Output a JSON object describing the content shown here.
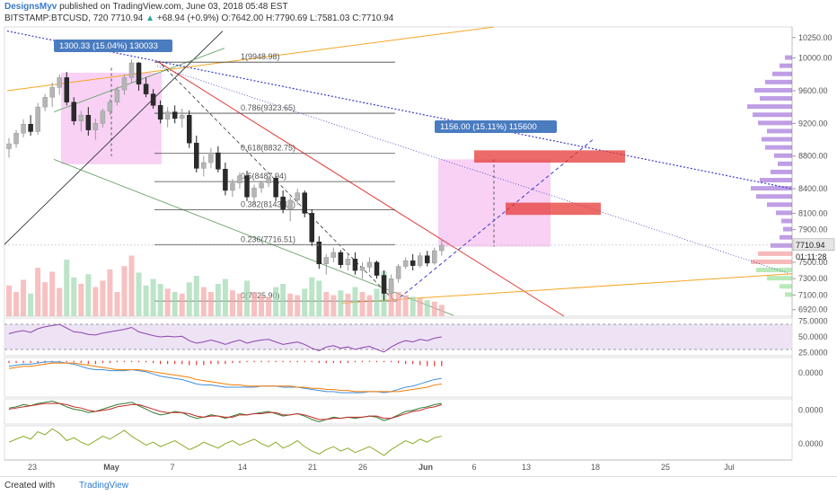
{
  "header": {
    "author": "DesignsMyv",
    "published_text": "published on TradingView.com, June 03, 2018 05:48 EST",
    "symbol": "BITSTAMP:BTCUSD, 720",
    "last": "7710.94",
    "change_arrow": "▲",
    "change": "+68.94 (+0.9%)",
    "ohlc": "O:7642.00 H:7790.69 L:7581.03 C:7710.94"
  },
  "footer": {
    "created_with": "Created with",
    "brand": "TradingView"
  },
  "colors": {
    "fib": "#444444",
    "trend_blue": "#3b3bc8",
    "red": "#e53935",
    "orange": "#f5a623",
    "pink": "#f6c6f2",
    "bull": "#b5b5b5",
    "bear": "#2b2b2b",
    "rsi": "#8e44ad",
    "macd": "#3f8fdc",
    "signal": "#f57c00"
  },
  "chart_data": {
    "type": "candlestick",
    "y_axis_ticks": [
      "10250.00",
      "10000.00",
      "9600.00",
      "9200.00",
      "8800.00",
      "8400.00",
      "8100.00",
      "7900.00",
      "7500.00",
      "7300.00",
      "7100.00",
      "6920.00"
    ],
    "x_axis_ticks": [
      "23",
      "May",
      "7",
      "14",
      "21",
      "26",
      "Jun",
      "6",
      "13",
      "18",
      "25",
      "Jul"
    ],
    "last_price_label": "7710.94",
    "countdown_label": "01:11:28",
    "fib_labels": [
      "1(9948.98)",
      "0.786(9323.65)",
      "0.618(8832.75)",
      "0.5(8487.94)",
      "0.382(8143.13)",
      "0.236(7716.51)",
      "0(7025.90)"
    ],
    "measure_boxes": [
      {
        "label": "1300.33 (15.04%) 130033"
      },
      {
        "label": "1156.00 (15.11%) 115600"
      }
    ],
    "ohlc": [
      [
        8890,
        9020,
        8780,
        8950
      ],
      [
        8950,
        9120,
        8900,
        9080
      ],
      [
        9080,
        9250,
        9030,
        9190
      ],
      [
        9190,
        9300,
        9050,
        9100
      ],
      [
        9100,
        9450,
        9060,
        9400
      ],
      [
        9400,
        9560,
        9350,
        9520
      ],
      [
        9520,
        9700,
        9400,
        9640
      ],
      [
        9640,
        9800,
        9550,
        9760
      ],
      [
        9760,
        9830,
        9420,
        9460
      ],
      [
        9460,
        9520,
        9180,
        9230
      ],
      [
        9230,
        9350,
        9100,
        9300
      ],
      [
        9300,
        9400,
        9050,
        9120
      ],
      [
        9120,
        9260,
        9000,
        9200
      ],
      [
        9200,
        9380,
        9150,
        9350
      ],
      [
        9350,
        9500,
        9300,
        9460
      ],
      [
        9460,
        9650,
        9420,
        9610
      ],
      [
        9610,
        9800,
        9550,
        9760
      ],
      [
        9760,
        9980,
        9700,
        9940
      ],
      [
        9940,
        9950,
        9600,
        9680
      ],
      [
        9680,
        9760,
        9520,
        9560
      ],
      [
        9560,
        9620,
        9380,
        9420
      ],
      [
        9420,
        9480,
        9200,
        9250
      ],
      [
        9250,
        9400,
        9150,
        9340
      ],
      [
        9340,
        9420,
        9200,
        9260
      ],
      [
        9260,
        9380,
        9150,
        9300
      ],
      [
        9300,
        9360,
        8900,
        8960
      ],
      [
        8960,
        9050,
        8600,
        8650
      ],
      [
        8650,
        8800,
        8550,
        8720
      ],
      [
        8720,
        8900,
        8650,
        8840
      ],
      [
        8840,
        8920,
        8600,
        8640
      ],
      [
        8640,
        8720,
        8320,
        8380
      ],
      [
        8380,
        8520,
        8300,
        8470
      ],
      [
        8470,
        8600,
        8400,
        8560
      ],
      [
        8560,
        8620,
        8250,
        8300
      ],
      [
        8300,
        8450,
        8200,
        8410
      ],
      [
        8410,
        8500,
        8350,
        8470
      ],
      [
        8470,
        8560,
        8420,
        8530
      ],
      [
        8530,
        8560,
        8250,
        8300
      ],
      [
        8300,
        8380,
        8100,
        8150
      ],
      [
        8150,
        8300,
        8000,
        8260
      ],
      [
        8260,
        8400,
        8200,
        8350
      ],
      [
        8350,
        8380,
        8050,
        8100
      ],
      [
        8100,
        8150,
        7700,
        7750
      ],
      [
        7750,
        7820,
        7420,
        7480
      ],
      [
        7480,
        7600,
        7350,
        7560
      ],
      [
        7560,
        7680,
        7500,
        7620
      ],
      [
        7620,
        7650,
        7430,
        7470
      ],
      [
        7470,
        7600,
        7400,
        7540
      ],
      [
        7540,
        7620,
        7350,
        7400
      ],
      [
        7400,
        7500,
        7300,
        7440
      ],
      [
        7440,
        7560,
        7380,
        7500
      ],
      [
        7500,
        7520,
        7300,
        7340
      ],
      [
        7340,
        7400,
        7030,
        7120
      ],
      [
        7120,
        7350,
        7060,
        7300
      ],
      [
        7300,
        7480,
        7250,
        7450
      ],
      [
        7450,
        7560,
        7420,
        7520
      ],
      [
        7520,
        7600,
        7400,
        7460
      ],
      [
        7460,
        7620,
        7430,
        7580
      ],
      [
        7580,
        7640,
        7450,
        7490
      ],
      [
        7490,
        7680,
        7470,
        7642
      ],
      [
        7642,
        7791,
        7581,
        7711
      ]
    ],
    "volume": [
      38,
      30,
      45,
      28,
      60,
      42,
      55,
      35,
      70,
      48,
      40,
      52,
      36,
      44,
      58,
      30,
      62,
      75,
      54,
      38,
      46,
      40,
      34,
      30,
      28,
      42,
      50,
      36,
      30,
      40,
      46,
      32,
      28,
      44,
      30,
      26,
      24,
      36,
      40,
      28,
      26,
      34,
      48,
      44,
      30,
      26,
      32,
      28,
      36,
      30,
      26,
      34,
      56,
      40,
      30,
      26,
      24,
      22,
      20,
      18,
      14
    ],
    "rsi": [
      55,
      58,
      60,
      57,
      63,
      66,
      68,
      70,
      64,
      58,
      57,
      54,
      53,
      56,
      58,
      60,
      62,
      65,
      58,
      55,
      52,
      50,
      51,
      50,
      51,
      44,
      40,
      42,
      45,
      42,
      38,
      42,
      45,
      40,
      43,
      45,
      46,
      42,
      38,
      40,
      42,
      38,
      32,
      28,
      34,
      36,
      32,
      34,
      30,
      33,
      35,
      30,
      26,
      34,
      40,
      44,
      42,
      46,
      44,
      48,
      50
    ],
    "macd": [
      0.6,
      0.7,
      0.8,
      0.8,
      0.9,
      1.0,
      1.0,
      1.0,
      0.9,
      0.8,
      0.6,
      0.4,
      0.3,
      0.3,
      0.2,
      0.2,
      0.2,
      0.3,
      0.2,
      0.1,
      -0.1,
      -0.3,
      -0.4,
      -0.5,
      -0.6,
      -0.8,
      -1.0,
      -1.1,
      -1.1,
      -1.2,
      -1.3,
      -1.3,
      -1.3,
      -1.3,
      -1.3,
      -1.2,
      -1.2,
      -1.2,
      -1.3,
      -1.3,
      -1.3,
      -1.4,
      -1.5,
      -1.6,
      -1.7,
      -1.7,
      -1.8,
      -1.8,
      -1.8,
      -1.8,
      -1.7,
      -1.7,
      -1.8,
      -1.7,
      -1.5,
      -1.3,
      -1.2,
      -1.0,
      -0.8,
      -0.6,
      -0.5
    ],
    "signal": [
      0.4,
      0.5,
      0.6,
      0.6,
      0.7,
      0.8,
      0.9,
      0.9,
      0.9,
      0.9,
      0.8,
      0.7,
      0.6,
      0.5,
      0.4,
      0.3,
      0.3,
      0.3,
      0.3,
      0.2,
      0.1,
      0.0,
      -0.1,
      -0.2,
      -0.3,
      -0.4,
      -0.6,
      -0.7,
      -0.8,
      -0.9,
      -1.0,
      -1.1,
      -1.1,
      -1.2,
      -1.2,
      -1.2,
      -1.2,
      -1.2,
      -1.2,
      -1.2,
      -1.3,
      -1.3,
      -1.4,
      -1.4,
      -1.5,
      -1.5,
      -1.6,
      -1.6,
      -1.7,
      -1.7,
      -1.7,
      -1.7,
      -1.7,
      -1.7,
      -1.7,
      -1.6,
      -1.5,
      -1.4,
      -1.3,
      -1.1,
      -1.0
    ],
    "osc_a": [
      0.2,
      0.3,
      0.5,
      0.4,
      0.6,
      0.7,
      0.8,
      0.6,
      0.3,
      0.1,
      0.0,
      -0.2,
      -0.1,
      0.1,
      0.3,
      0.5,
      0.6,
      0.7,
      0.4,
      0.1,
      -0.2,
      -0.4,
      -0.3,
      -0.1,
      -0.2,
      -0.5,
      -0.7,
      -0.6,
      -0.4,
      -0.5,
      -0.7,
      -0.5,
      -0.3,
      -0.4,
      -0.3,
      -0.2,
      -0.1,
      -0.3,
      -0.5,
      -0.4,
      -0.3,
      -0.5,
      -0.8,
      -1.0,
      -0.8,
      -0.6,
      -0.7,
      -0.6,
      -0.7,
      -0.6,
      -0.5,
      -0.6,
      -0.9,
      -0.7,
      -0.4,
      -0.1,
      0.0,
      0.2,
      0.3,
      0.5,
      0.6
    ],
    "osc_b": [
      0.1,
      0.2,
      0.3,
      0.4,
      0.5,
      0.6,
      0.6,
      0.6,
      0.5,
      0.3,
      0.2,
      0.0,
      -0.1,
      0.0,
      0.1,
      0.3,
      0.4,
      0.5,
      0.5,
      0.3,
      0.1,
      -0.1,
      -0.2,
      -0.2,
      -0.2,
      -0.3,
      -0.5,
      -0.6,
      -0.5,
      -0.5,
      -0.6,
      -0.6,
      -0.4,
      -0.4,
      -0.3,
      -0.3,
      -0.2,
      -0.2,
      -0.4,
      -0.4,
      -0.3,
      -0.4,
      -0.6,
      -0.8,
      -0.8,
      -0.7,
      -0.7,
      -0.6,
      -0.6,
      -0.6,
      -0.5,
      -0.5,
      -0.7,
      -0.7,
      -0.5,
      -0.3,
      -0.1,
      0.0,
      0.2,
      0.3,
      0.5
    ],
    "mom": [
      0.1,
      0.3,
      0.5,
      0.3,
      0.8,
      0.6,
      1.0,
      0.7,
      0.2,
      0.4,
      0.1,
      -0.1,
      0.2,
      0.5,
      0.3,
      0.6,
      0.9,
      0.5,
      0.2,
      -0.1,
      0.1,
      -0.2,
      0.0,
      0.2,
      -0.1,
      -0.4,
      -0.2,
      0.1,
      -0.1,
      -0.3,
      0.0,
      0.2,
      -0.1,
      0.1,
      0.3,
      0.0,
      -0.2,
      0.1,
      -0.3,
      -0.1,
      0.2,
      -0.2,
      -0.5,
      -0.7,
      -0.4,
      -0.2,
      -0.5,
      -0.3,
      -0.6,
      -0.4,
      -0.2,
      -0.5,
      -0.8,
      -0.4,
      -0.1,
      0.2,
      0.0,
      0.3,
      0.1,
      0.4,
      0.5
    ],
    "subpanel_ticks": {
      "rsi": [
        "75.0000",
        "50.0000",
        "25.0000"
      ],
      "macd": [
        "0.0000"
      ],
      "osc": [
        "0.0000"
      ],
      "mom": [
        "0.0000"
      ]
    },
    "volume_profile": [
      {
        "p": 10000,
        "w": 8
      },
      {
        "p": 9900,
        "w": 14
      },
      {
        "p": 9800,
        "w": 22
      },
      {
        "p": 9700,
        "w": 30
      },
      {
        "p": 9600,
        "w": 42
      },
      {
        "p": 9500,
        "w": 36
      },
      {
        "p": 9400,
        "w": 50
      },
      {
        "p": 9300,
        "w": 44
      },
      {
        "p": 9200,
        "w": 38
      },
      {
        "p": 9100,
        "w": 28
      },
      {
        "p": 9000,
        "w": 34
      },
      {
        "p": 8900,
        "w": 30
      },
      {
        "p": 8800,
        "w": 20
      },
      {
        "p": 8700,
        "w": 16
      },
      {
        "p": 8600,
        "w": 24
      },
      {
        "p": 8500,
        "w": 36
      },
      {
        "p": 8400,
        "w": 46
      },
      {
        "p": 8300,
        "w": 40
      },
      {
        "p": 8200,
        "w": 28
      },
      {
        "p": 8100,
        "w": 18
      },
      {
        "p": 8000,
        "w": 12
      },
      {
        "p": 7900,
        "w": 10
      },
      {
        "p": 7800,
        "w": 14
      },
      {
        "p": 7700,
        "w": 24
      },
      {
        "p": 7600,
        "w": 38
      },
      {
        "p": 7500,
        "w": 46
      },
      {
        "p": 7400,
        "w": 40
      },
      {
        "p": 7300,
        "w": 28
      },
      {
        "p": 7200,
        "w": 14
      },
      {
        "p": 7100,
        "w": 8
      }
    ]
  }
}
